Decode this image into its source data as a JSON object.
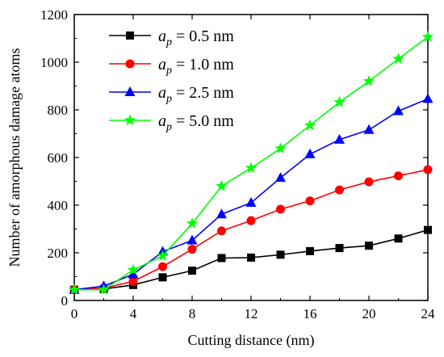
{
  "chart_data": {
    "type": "line",
    "title": "",
    "xlabel": "Cutting distance (nm)",
    "ylabel": "Number of amorphous damage atoms",
    "xlim": [
      0,
      24
    ],
    "ylim": [
      0,
      1200
    ],
    "xticks": [
      0,
      4,
      8,
      12,
      16,
      20,
      24
    ],
    "yticks": [
      0,
      200,
      400,
      600,
      800,
      1000,
      1200
    ],
    "grid": false,
    "legend_position": "top-left",
    "x": [
      0,
      2,
      4,
      6,
      8,
      10,
      12,
      14,
      16,
      18,
      20,
      22,
      24
    ],
    "series": [
      {
        "legend_symbol": "a",
        "legend_subscript": "p",
        "legend_value": " = 0.5 nm",
        "color": "#000000",
        "marker": "square",
        "values": [
          45,
          48,
          65,
          97,
          125,
          178,
          180,
          192,
          207,
          220,
          230,
          260,
          296
        ]
      },
      {
        "legend_symbol": "a",
        "legend_subscript": "p",
        "legend_value": " = 1.0 nm",
        "color": "#ff0000",
        "marker": "circle",
        "values": [
          45,
          52,
          80,
          142,
          215,
          292,
          335,
          383,
          418,
          464,
          498,
          523,
          549
        ]
      },
      {
        "legend_symbol": "a",
        "legend_subscript": "p",
        "legend_value": " = 2.5 nm",
        "color": "#0000ff",
        "marker": "triangle",
        "values": [
          45,
          60,
          110,
          205,
          252,
          362,
          410,
          515,
          614,
          675,
          716,
          795,
          846
        ]
      },
      {
        "legend_symbol": "a",
        "legend_subscript": "p",
        "legend_value": " = 5.0 nm",
        "color": "#00ff00",
        "marker": "star",
        "values": [
          45,
          45,
          128,
          187,
          323,
          480,
          556,
          638,
          735,
          832,
          920,
          1014,
          1106
        ]
      }
    ]
  }
}
